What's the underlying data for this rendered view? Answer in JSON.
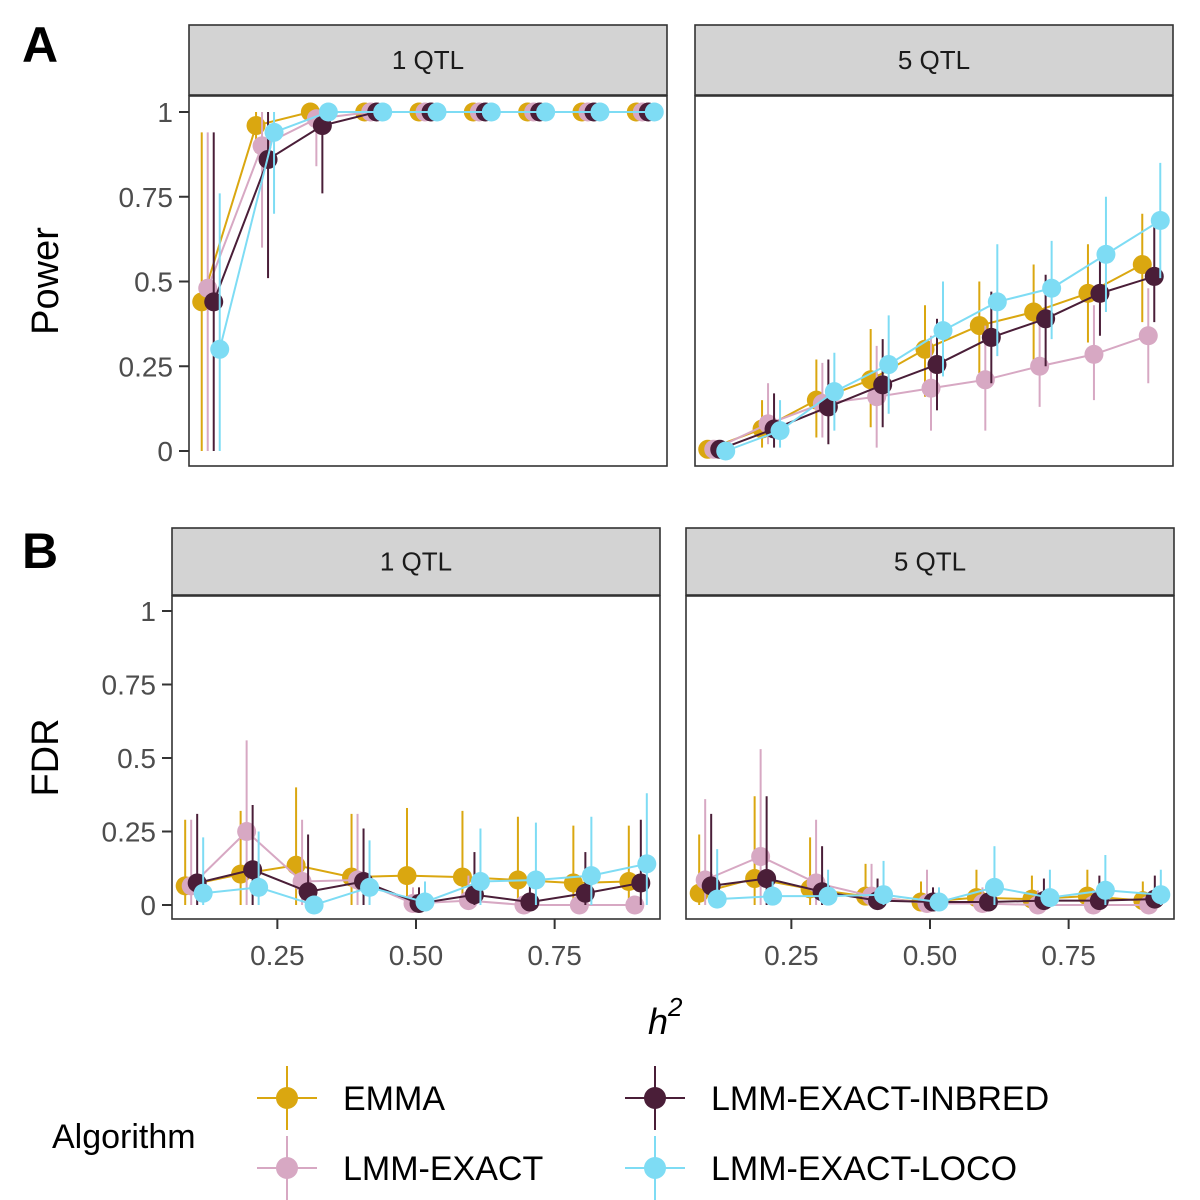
{
  "colors": {
    "EMMA": "#DAA710",
    "LMM-EXACT": "#D7A8C3",
    "LMM-EXACT-INBRED": "#4A1E38",
    "LMM-EXACT-LOCO": "#7EDCF4"
  },
  "x_axis": {
    "label_main": "h",
    "label_sup": "2",
    "ticks": [
      0.25,
      0.5,
      0.75
    ],
    "tick_labels": [
      "0.25",
      "0.50",
      "0.75"
    ],
    "xlim": [
      0.06,
      0.94
    ]
  },
  "legend": {
    "title": "Algorithm",
    "items": [
      "EMMA",
      "LMM-EXACT",
      "LMM-EXACT-INBRED",
      "LMM-EXACT-LOCO"
    ]
  },
  "chart_data": [
    {
      "type": "scatter",
      "panel_tag": "A",
      "ylabel": "Power",
      "ylim": [
        0,
        1
      ],
      "yticks": [
        0,
        0.25,
        0.5,
        0.75,
        1
      ],
      "ytick_labels": [
        "0",
        "0.25",
        "0.5",
        "0.75",
        "1"
      ],
      "facets": [
        {
          "label": "1 QTL",
          "series": [
            {
              "name": "EMMA",
              "x": [
                0.1,
                0.2,
                0.3,
                0.4,
                0.5,
                0.6,
                0.7,
                0.8,
                0.9
              ],
              "y": [
                0.44,
                0.96,
                1,
                1,
                1,
                1,
                1,
                1,
                1
              ],
              "lo": [
                0,
                0.88,
                1,
                1,
                1,
                1,
                1,
                1,
                1
              ],
              "hi": [
                0.94,
                1,
                1,
                1,
                1,
                1,
                1,
                1,
                1
              ]
            },
            {
              "name": "LMM-EXACT",
              "x": [
                0.1,
                0.2,
                0.3,
                0.4,
                0.5,
                0.6,
                0.7,
                0.8,
                0.9
              ],
              "y": [
                0.48,
                0.9,
                0.98,
                1,
                1,
                1,
                1,
                1,
                1
              ],
              "lo": [
                0,
                0.6,
                0.84,
                1,
                1,
                1,
                1,
                1,
                1
              ],
              "hi": [
                0.94,
                1,
                1,
                1,
                1,
                1,
                1,
                1,
                1
              ]
            },
            {
              "name": "LMM-EXACT-INBRED",
              "x": [
                0.1,
                0.2,
                0.3,
                0.4,
                0.5,
                0.6,
                0.7,
                0.8,
                0.9
              ],
              "y": [
                0.44,
                0.86,
                0.96,
                1,
                1,
                1,
                1,
                1,
                1
              ],
              "lo": [
                0,
                0.51,
                0.76,
                1,
                1,
                1,
                1,
                1,
                1
              ],
              "hi": [
                0.94,
                1,
                1,
                1,
                1,
                1,
                1,
                1,
                1
              ]
            },
            {
              "name": "LMM-EXACT-LOCO",
              "x": [
                0.1,
                0.2,
                0.3,
                0.4,
                0.5,
                0.6,
                0.7,
                0.8,
                0.9
              ],
              "y": [
                0.3,
                0.94,
                1,
                1,
                1,
                1,
                1,
                1,
                1
              ],
              "lo": [
                0,
                0.7,
                1,
                1,
                1,
                1,
                1,
                1,
                1
              ],
              "hi": [
                0.76,
                1,
                1,
                1,
                1,
                1,
                1,
                1,
                1
              ]
            }
          ]
        },
        {
          "label": "5 QTL",
          "series": [
            {
              "name": "EMMA",
              "x": [
                0.1,
                0.2,
                0.3,
                0.4,
                0.5,
                0.6,
                0.7,
                0.8,
                0.9
              ],
              "y": [
                0.005,
                0.065,
                0.15,
                0.21,
                0.3,
                0.37,
                0.41,
                0.465,
                0.55
              ],
              "lo": [
                0,
                0.01,
                0.04,
                0.07,
                0.16,
                0.23,
                0.26,
                0.32,
                0.38
              ],
              "hi": [
                0.02,
                0.15,
                0.27,
                0.36,
                0.43,
                0.5,
                0.55,
                0.61,
                0.7
              ]
            },
            {
              "name": "LMM-EXACT",
              "x": [
                0.1,
                0.2,
                0.3,
                0.4,
                0.5,
                0.6,
                0.7,
                0.8,
                0.9
              ],
              "y": [
                0.005,
                0.08,
                0.14,
                0.16,
                0.185,
                0.21,
                0.25,
                0.285,
                0.34
              ],
              "lo": [
                0,
                0.02,
                0.04,
                0.01,
                0.06,
                0.06,
                0.13,
                0.15,
                0.2
              ],
              "hi": [
                0.02,
                0.2,
                0.26,
                0.31,
                0.34,
                0.37,
                0.39,
                0.43,
                0.48
              ]
            },
            {
              "name": "LMM-EXACT-INBRED",
              "x": [
                0.1,
                0.2,
                0.3,
                0.4,
                0.5,
                0.6,
                0.7,
                0.8,
                0.9
              ],
              "y": [
                0.005,
                0.065,
                0.13,
                0.195,
                0.255,
                0.335,
                0.39,
                0.465,
                0.515
              ],
              "lo": [
                0,
                0.01,
                0.02,
                0.07,
                0.12,
                0.2,
                0.25,
                0.34,
                0.38
              ],
              "hi": [
                0.02,
                0.17,
                0.27,
                0.33,
                0.39,
                0.47,
                0.52,
                0.59,
                0.66
              ]
            },
            {
              "name": "LMM-EXACT-LOCO",
              "x": [
                0.1,
                0.2,
                0.3,
                0.4,
                0.5,
                0.6,
                0.7,
                0.8,
                0.9
              ],
              "y": [
                0,
                0.06,
                0.175,
                0.255,
                0.355,
                0.44,
                0.48,
                0.58,
                0.68
              ],
              "lo": [
                0,
                0.01,
                0.06,
                0.11,
                0.22,
                0.28,
                0.33,
                0.41,
                0.51
              ],
              "hi": [
                0.01,
                0.15,
                0.29,
                0.4,
                0.5,
                0.61,
                0.62,
                0.75,
                0.85
              ]
            }
          ]
        }
      ]
    },
    {
      "type": "scatter",
      "panel_tag": "B",
      "ylabel": "FDR",
      "ylim": [
        0,
        1
      ],
      "yticks": [
        0,
        0.25,
        0.5,
        0.75,
        1
      ],
      "ytick_labels": [
        "0",
        "0.25",
        "0.5",
        "0.75",
        "1"
      ],
      "facets": [
        {
          "label": "1 QTL",
          "series": [
            {
              "name": "EMMA",
              "x": [
                0.1,
                0.2,
                0.3,
                0.4,
                0.5,
                0.6,
                0.7,
                0.8,
                0.9
              ],
              "y": [
                0.065,
                0.105,
                0.135,
                0.095,
                0.1,
                0.095,
                0.085,
                0.075,
                0.08
              ],
              "lo": [
                0,
                0,
                0,
                0,
                0,
                0,
                0,
                0,
                0
              ],
              "hi": [
                0.29,
                0.32,
                0.4,
                0.31,
                0.33,
                0.32,
                0.3,
                0.27,
                0.27
              ]
            },
            {
              "name": "LMM-EXACT",
              "x": [
                0.1,
                0.2,
                0.3,
                0.4,
                0.5,
                0.6,
                0.7,
                0.8,
                0.9
              ],
              "y": [
                0.065,
                0.25,
                0.08,
                0.085,
                0.005,
                0.015,
                0,
                0,
                0
              ],
              "lo": [
                0,
                0,
                0,
                0,
                0,
                0,
                0,
                0,
                0
              ],
              "hi": [
                0.29,
                0.56,
                0.29,
                0.31,
                0.06,
                0.1,
                0,
                0,
                0
              ]
            },
            {
              "name": "LMM-EXACT-INBRED",
              "x": [
                0.1,
                0.2,
                0.3,
                0.4,
                0.5,
                0.6,
                0.7,
                0.8,
                0.9
              ],
              "y": [
                0.075,
                0.12,
                0.045,
                0.08,
                0.005,
                0.035,
                0.01,
                0.04,
                0.075
              ],
              "lo": [
                0,
                0,
                0,
                0,
                0,
                0,
                0,
                0,
                0
              ],
              "hi": [
                0.31,
                0.34,
                0.24,
                0.26,
                0.06,
                0.18,
                0.1,
                0.18,
                0.29
              ]
            },
            {
              "name": "LMM-EXACT-LOCO",
              "x": [
                0.1,
                0.2,
                0.3,
                0.4,
                0.5,
                0.6,
                0.7,
                0.8,
                0.9
              ],
              "y": [
                0.04,
                0.06,
                0,
                0.06,
                0.01,
                0.08,
                0.085,
                0.1,
                0.14
              ],
              "lo": [
                0,
                0,
                0,
                0,
                0,
                0,
                0,
                0,
                0
              ],
              "hi": [
                0.23,
                0.25,
                0,
                0.22,
                0.08,
                0.26,
                0.28,
                0.3,
                0.38
              ]
            }
          ]
        },
        {
          "label": "5 QTL",
          "series": [
            {
              "name": "EMMA",
              "x": [
                0.1,
                0.2,
                0.3,
                0.4,
                0.5,
                0.6,
                0.7,
                0.8,
                0.9
              ],
              "y": [
                0.04,
                0.09,
                0.055,
                0.03,
                0.01,
                0.025,
                0.02,
                0.03,
                0.015
              ],
              "lo": [
                0,
                0,
                0,
                0,
                0,
                0,
                0,
                0,
                0
              ],
              "hi": [
                0.24,
                0.37,
                0.23,
                0.14,
                0.08,
                0.12,
                0.1,
                0.12,
                0.08
              ]
            },
            {
              "name": "LMM-EXACT",
              "x": [
                0.1,
                0.2,
                0.3,
                0.4,
                0.5,
                0.6,
                0.7,
                0.8,
                0.9
              ],
              "y": [
                0.085,
                0.165,
                0.075,
                0.03,
                0.005,
                0.005,
                0,
                0,
                0
              ],
              "lo": [
                0,
                0,
                0,
                0,
                0,
                0,
                0,
                0,
                0
              ],
              "hi": [
                0.36,
                0.53,
                0.29,
                0.14,
                0.12,
                0.06,
                0.05,
                0.05,
                0.03
              ]
            },
            {
              "name": "LMM-EXACT-INBRED",
              "x": [
                0.1,
                0.2,
                0.3,
                0.4,
                0.5,
                0.6,
                0.7,
                0.8,
                0.9
              ],
              "y": [
                0.065,
                0.09,
                0.045,
                0.015,
                0.01,
                0.01,
                0.015,
                0.015,
                0.02
              ],
              "lo": [
                0,
                0,
                0,
                0,
                0,
                0,
                0,
                0,
                0
              ],
              "hi": [
                0.31,
                0.37,
                0.2,
                0.09,
                0.06,
                0.07,
                0.09,
                0.1,
                0.1
              ]
            },
            {
              "name": "LMM-EXACT-LOCO",
              "x": [
                0.1,
                0.2,
                0.3,
                0.4,
                0.5,
                0.6,
                0.7,
                0.8,
                0.9
              ],
              "y": [
                0.02,
                0.03,
                0.03,
                0.035,
                0.01,
                0.06,
                0.025,
                0.05,
                0.035
              ],
              "lo": [
                0,
                0,
                0,
                0,
                0,
                0,
                0,
                0,
                0
              ],
              "hi": [
                0.19,
                0.08,
                0.12,
                0.15,
                0.06,
                0.2,
                0.12,
                0.17,
                0.12
              ]
            }
          ]
        }
      ]
    }
  ]
}
